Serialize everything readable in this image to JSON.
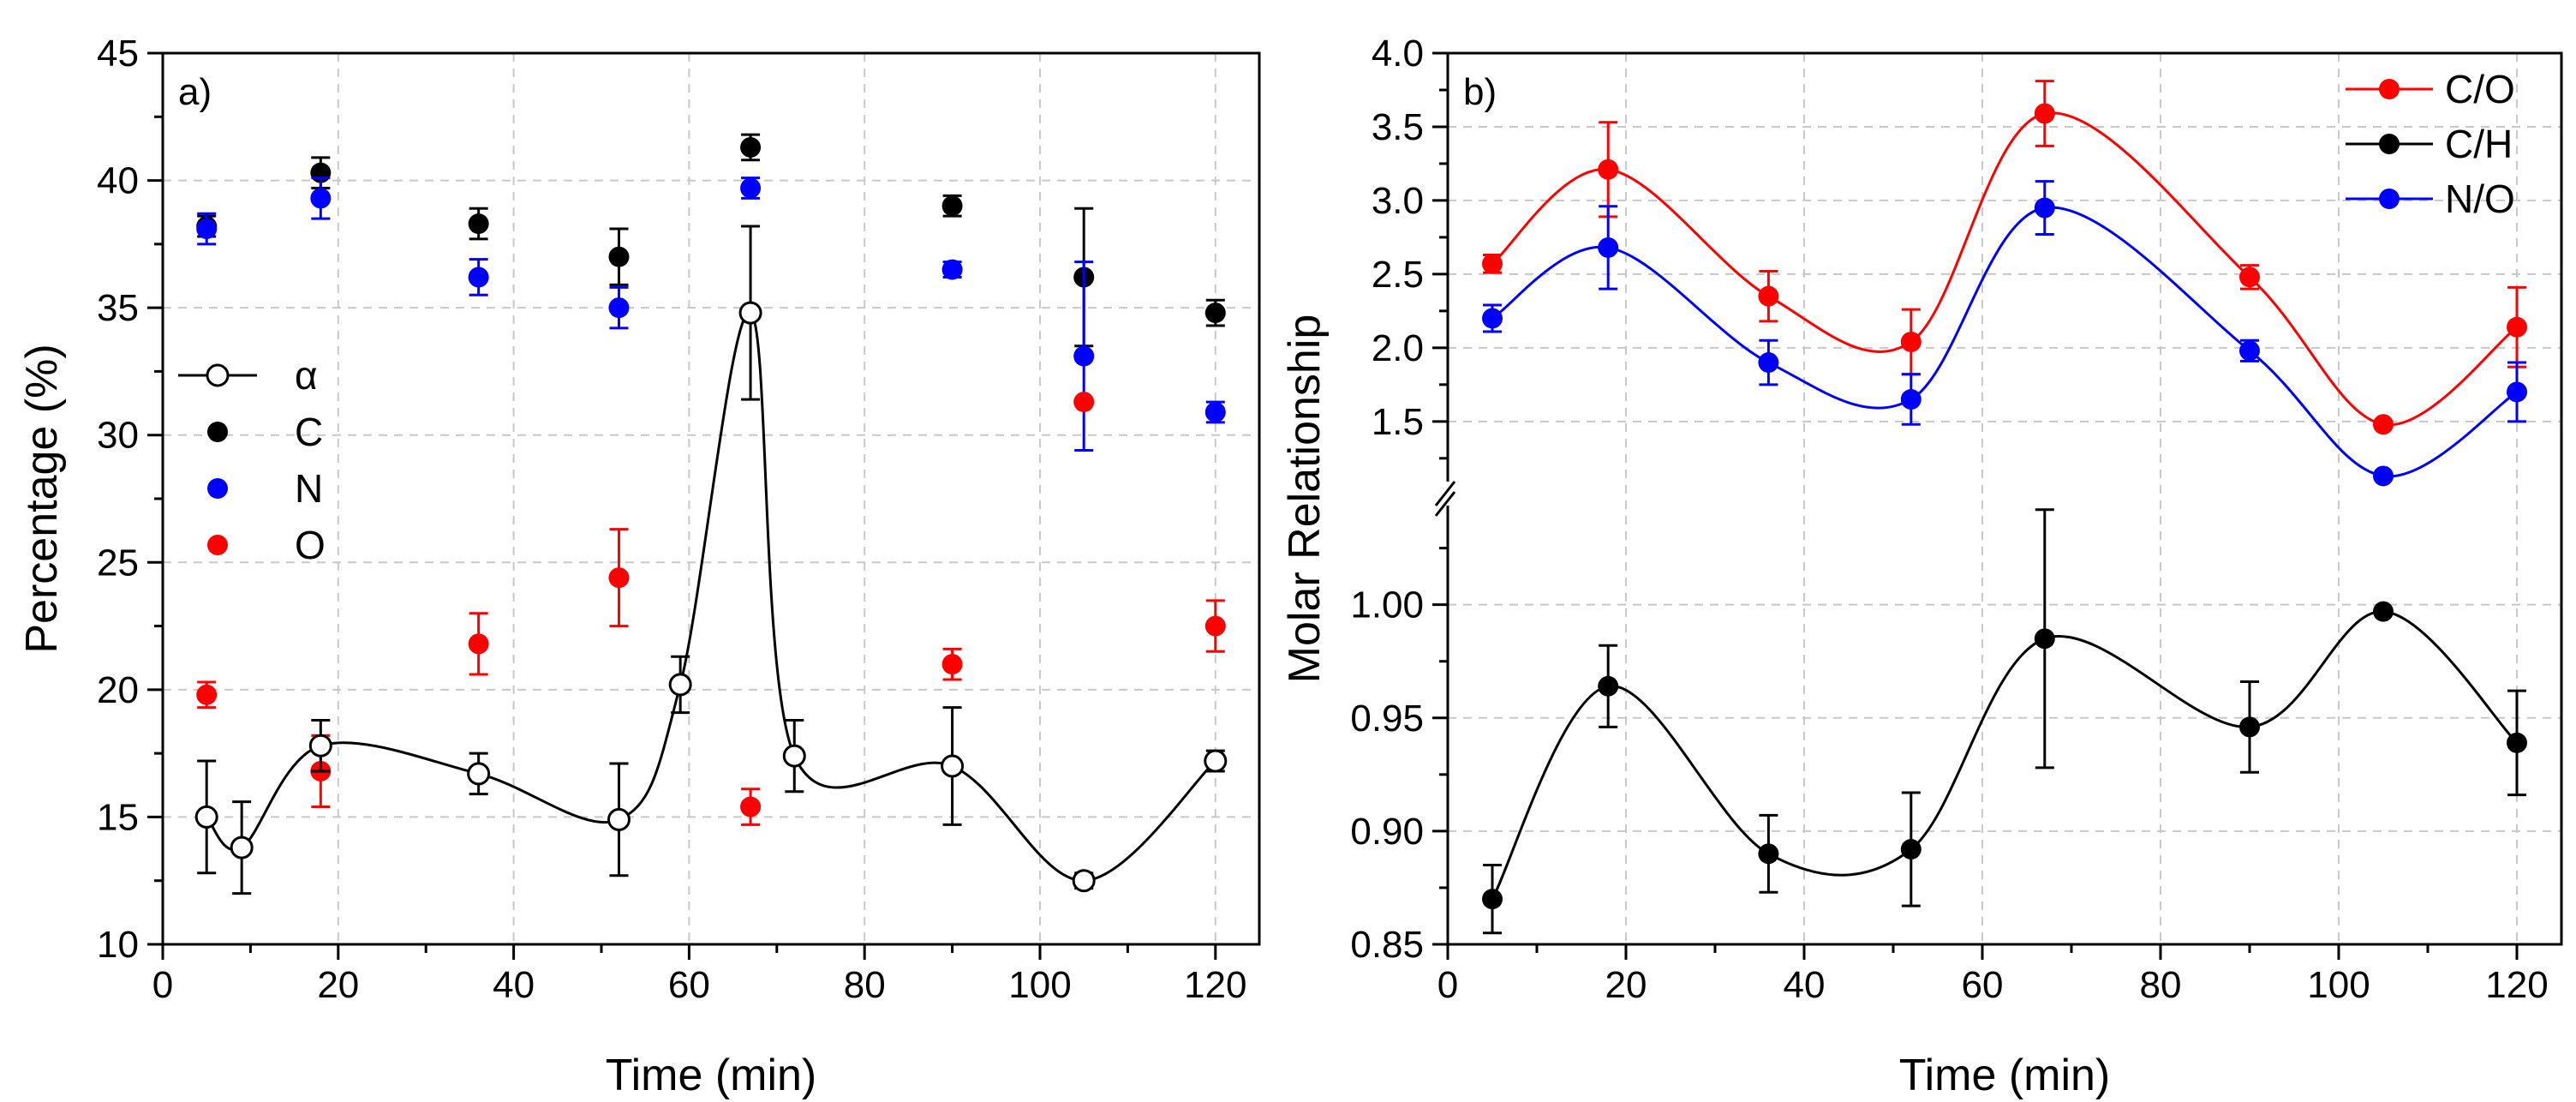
{
  "chart_data": [
    {
      "type": "scatter",
      "panel_label": "a)",
      "xlabel": "Time (min)",
      "ylabel": "Percentage (%)",
      "xlim": [
        0,
        125
      ],
      "ylim": [
        10,
        45
      ],
      "xticks": [
        "0",
        "20",
        "40",
        "60",
        "80",
        "100",
        "120"
      ],
      "yticks": [
        "10",
        "15",
        "20",
        "25",
        "30",
        "35",
        "40",
        "45"
      ],
      "grid": true,
      "legend_position": "middle-left",
      "series": [
        {
          "name": "α",
          "color": "#000000",
          "marker": "open-circle",
          "line": "smooth",
          "x": [
            5,
            9,
            18,
            36,
            52,
            59,
            67,
            72,
            90,
            105,
            120
          ],
          "y": [
            15.0,
            13.8,
            17.8,
            16.7,
            14.9,
            20.2,
            34.8,
            17.4,
            17.0,
            12.5,
            17.2
          ],
          "err": [
            2.2,
            1.8,
            1.0,
            0.8,
            2.2,
            1.1,
            3.4,
            1.4,
            2.3,
            0.3,
            0.4
          ]
        },
        {
          "name": "C",
          "color": "#000000",
          "marker": "filled-circle",
          "line": "none",
          "x": [
            5,
            18,
            36,
            52,
            67,
            90,
            105,
            120
          ],
          "y": [
            38.2,
            40.3,
            38.3,
            37.0,
            41.3,
            39.0,
            36.2,
            34.8
          ],
          "err": [
            0.4,
            0.6,
            0.6,
            1.1,
            0.5,
            0.4,
            2.7,
            0.5
          ]
        },
        {
          "name": "N",
          "color": "#0000ff",
          "marker": "filled-circle",
          "line": "none",
          "x": [
            5,
            18,
            36,
            52,
            67,
            90,
            105,
            120
          ],
          "y": [
            38.1,
            39.3,
            36.2,
            35.0,
            39.7,
            36.5,
            33.1,
            30.9
          ],
          "err": [
            0.6,
            0.8,
            0.7,
            0.8,
            0.4,
            0.3,
            3.7,
            0.4
          ]
        },
        {
          "name": "O",
          "color": "#ff0000",
          "marker": "filled-circle",
          "line": "none",
          "x": [
            5,
            18,
            36,
            52,
            67,
            90,
            105,
            120
          ],
          "y": [
            19.8,
            16.8,
            21.8,
            24.4,
            15.4,
            21.0,
            31.3,
            22.5
          ],
          "err": [
            0.5,
            1.4,
            1.2,
            1.9,
            0.7,
            0.6,
            0,
            1.0
          ]
        }
      ]
    },
    {
      "type": "line",
      "panel_label": "b)",
      "xlabel": "Time (min)",
      "ylabel": "Molar Relationship",
      "xlim": [
        0,
        125
      ],
      "broken_y_axis": true,
      "upper_ylim": [
        1.15,
        4.0
      ],
      "upper_yticks": [
        "1.5",
        "2.0",
        "2.5",
        "3.0",
        "3.5",
        "4.0"
      ],
      "lower_ylim": [
        0.85,
        1.04
      ],
      "lower_yticks": [
        "0.85",
        "0.90",
        "0.95",
        "1.00"
      ],
      "xticks": [
        "0",
        "20",
        "40",
        "60",
        "80",
        "100",
        "120"
      ],
      "grid": true,
      "legend_position": "top-right",
      "series": [
        {
          "name": "C/O",
          "color": "#ff0000",
          "segment": "upper",
          "x": [
            5,
            18,
            36,
            52,
            67,
            90,
            105,
            120
          ],
          "y": [
            2.57,
            3.21,
            2.35,
            2.04,
            3.59,
            2.48,
            1.48,
            2.14
          ],
          "err": [
            0.06,
            0.32,
            0.17,
            0.22,
            0.22,
            0.08,
            0.02,
            0.27
          ]
        },
        {
          "name": "C/H",
          "color": "#000000",
          "segment": "lower",
          "x": [
            5,
            18,
            36,
            52,
            67,
            90,
            105,
            120
          ],
          "y": [
            0.87,
            0.964,
            0.89,
            0.892,
            0.985,
            0.946,
            0.997,
            0.939
          ],
          "err": [
            0.015,
            0.018,
            0.017,
            0.025,
            0.057,
            0.02,
            0.001,
            0.023
          ]
        },
        {
          "name": "N/O",
          "color": "#0000ff",
          "segment": "upper",
          "x": [
            5,
            18,
            36,
            52,
            67,
            90,
            105,
            120
          ],
          "y": [
            2.2,
            2.68,
            1.9,
            1.65,
            2.95,
            1.98,
            1.13,
            1.7
          ],
          "err": [
            0.09,
            0.28,
            0.15,
            0.17,
            0.18,
            0.07,
            0,
            0.2
          ]
        }
      ]
    }
  ]
}
